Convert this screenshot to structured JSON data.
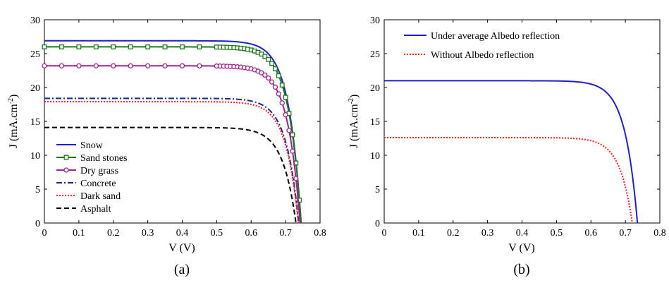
{
  "chart_data": [
    {
      "type": "line",
      "panel_label": "(a)",
      "xlabel": "V (V)",
      "ylabel": "J (mA.cm",
      "ylabel_sup": "-2",
      "ylabel_close": ")",
      "xlim": [
        0,
        0.8
      ],
      "ylim": [
        0,
        30
      ],
      "xticks": [
        "0",
        "0.1",
        "0.2",
        "0.3",
        "0.4",
        "0.5",
        "0.6",
        "0.7",
        "0.8"
      ],
      "yticks": [
        "0",
        "5",
        "10",
        "15",
        "20",
        "25",
        "30"
      ],
      "grid": false,
      "legend_position": "bottom-left",
      "series": [
        {
          "name": "Snow",
          "jsc": 26.9,
          "voc": 0.745,
          "knee": 0.036,
          "color": "#1f1fd0",
          "style": "solid",
          "marker": "none"
        },
        {
          "name": "Sand stones",
          "jsc": 26.0,
          "voc": 0.745,
          "knee": 0.036,
          "color": "#1a7a1a",
          "style": "solid",
          "marker": "square"
        },
        {
          "name": "Dry grass",
          "jsc": 23.2,
          "voc": 0.742,
          "knee": 0.036,
          "color": "#a0228f",
          "style": "solid",
          "marker": "circle"
        },
        {
          "name": "Concrete",
          "jsc": 18.4,
          "voc": 0.738,
          "knee": 0.036,
          "color": "#1a2a8a",
          "style": "dashdot",
          "marker": "none"
        },
        {
          "name": "Dark sand",
          "jsc": 17.9,
          "voc": 0.737,
          "knee": 0.036,
          "color": "#ff2020",
          "style": "dotted",
          "marker": "none"
        },
        {
          "name": "Asphalt",
          "jsc": 14.1,
          "voc": 0.73,
          "knee": 0.038,
          "color": "#000000",
          "style": "dashed",
          "marker": "none"
        }
      ]
    },
    {
      "type": "line",
      "panel_label": "(b)",
      "xlabel": "V (V)",
      "ylabel": "J (mA.cm",
      "ylabel_sup": "-2",
      "ylabel_close": ")",
      "xlim": [
        0,
        0.8
      ],
      "ylim": [
        0,
        30
      ],
      "xticks": [
        "0",
        "0.1",
        "0.2",
        "0.3",
        "0.4",
        "0.5",
        "0.6",
        "0.7",
        "0.8"
      ],
      "yticks": [
        "0",
        "5",
        "10",
        "15",
        "20",
        "25",
        "30"
      ],
      "grid": false,
      "legend_position": "top-left",
      "series": [
        {
          "name": "Under average Albedo reflection",
          "jsc": 21.0,
          "voc": 0.735,
          "knee": 0.036,
          "color": "#1f1fd0",
          "style": "solid",
          "marker": "none"
        },
        {
          "name": "Without Albedo reflection",
          "jsc": 12.6,
          "voc": 0.72,
          "knee": 0.036,
          "color": "#ff2020",
          "style": "dotted",
          "marker": "none"
        }
      ]
    }
  ]
}
